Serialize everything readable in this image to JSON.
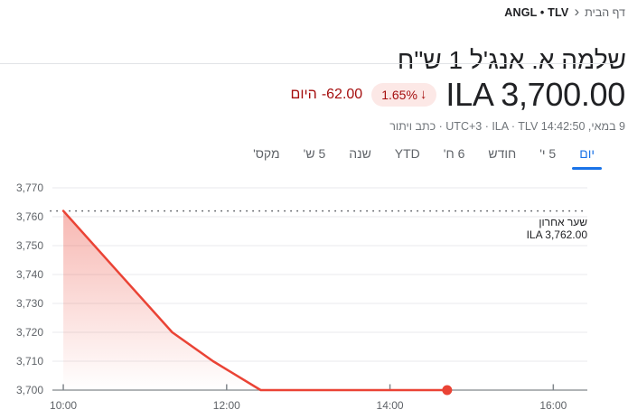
{
  "breadcrumb": {
    "home": "דף הבית",
    "separator": "‹",
    "current": "ANGL • TLV"
  },
  "title": "שלמה א. אנג'ל 1 ש\"ח",
  "quote": {
    "price": "ILA 3,700.00",
    "change_percent": "1.65%",
    "down_arrow": "↓",
    "change_value": "-62.00",
    "change_period": "היום",
    "meta": "9 במאי, 14:42:50 UTC+3 · ILA · TLV",
    "meta_separator": "·",
    "disclaimer_link": "כתב ויתור"
  },
  "tabs": [
    {
      "label": "יום",
      "active": true
    },
    {
      "label": "5 י'",
      "active": false
    },
    {
      "label": "חודש",
      "active": false
    },
    {
      "label": "6 ח'",
      "active": false
    },
    {
      "label": "YTD",
      "active": false
    },
    {
      "label": "שנה",
      "active": false
    },
    {
      "label": "5 ש'",
      "active": false
    },
    {
      "label": "מקס'",
      "active": false
    }
  ],
  "colors": {
    "accent_blue": "#1a73e8",
    "negative_text": "#a50e0e",
    "negative_badge_bg": "#fce8e6",
    "line_red": "#ea4335",
    "gridline": "#e9eaec",
    "axis_baseline": "#80868b"
  },
  "chart_data": {
    "type": "area",
    "title": "",
    "x_ticks": [
      "10:00",
      "12:00",
      "14:00",
      "16:00"
    ],
    "x_range": [
      "09:52",
      "16:25"
    ],
    "y_ticks": [
      3770,
      3760,
      3750,
      3740,
      3730,
      3720,
      3710,
      3700
    ],
    "y_tick_labels": [
      "3,770",
      "3,760",
      "3,750",
      "3,740",
      "3,730",
      "3,720",
      "3,710",
      "3,700"
    ],
    "ylim": [
      3700,
      3770
    ],
    "grid": true,
    "legend": false,
    "line_color": "#ea4335",
    "series": [
      {
        "name": "ANGL",
        "points": [
          [
            "10:00",
            3762
          ],
          [
            "10:40",
            3741
          ],
          [
            "11:20",
            3720
          ],
          [
            "11:50",
            3710
          ],
          [
            "12:25",
            3700
          ],
          [
            "14:42",
            3700
          ]
        ]
      }
    ],
    "last_price": {
      "label": "שער אחרון",
      "value": "ILA 3,762.00",
      "ref_value": 3762
    }
  }
}
